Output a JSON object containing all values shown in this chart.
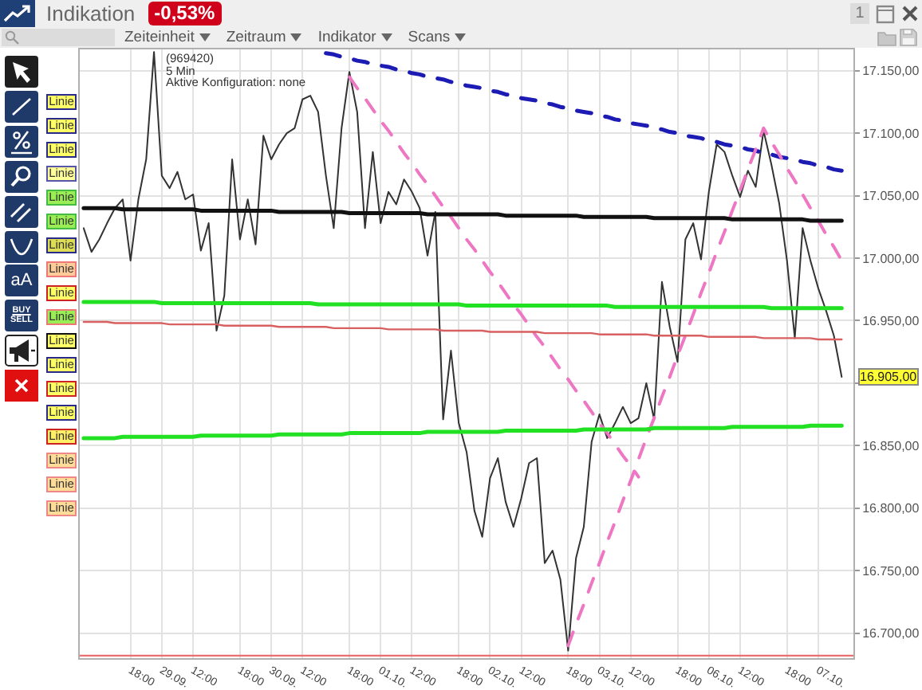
{
  "chart_data": {
    "type": "line",
    "title": "Indikation",
    "annotations": [
      "-0,53%",
      "1",
      "Zeiteinheit",
      "Zeitraum",
      "Indikator",
      "Scans",
      "(969420)",
      "5 Min",
      "Aktive Konfiguration: none",
      "aA",
      "BUY",
      "SELL",
      "Linie",
      "Linie",
      "Linie",
      "Linie",
      "Linie",
      "Linie",
      "Linie",
      "Linie",
      "Linie",
      "Linie",
      "Linie",
      "Linie",
      "Linie",
      "Linie",
      "Linie",
      "Linie",
      "Linie",
      "Linie",
      "16.905,00"
    ],
    "categories": [
      null,
      null,
      null,
      null,
      null,
      null,
      "18:00",
      null,
      null,
      null,
      "29.09.",
      null,
      null,
      null,
      "12:00",
      null,
      null,
      null,
      null,
      null,
      "18:00",
      null,
      null,
      null,
      "30.09.",
      null,
      null,
      null,
      "12:00",
      null,
      null,
      null,
      null,
      null,
      "18:00",
      null,
      null,
      null,
      "01.10.",
      null,
      null,
      null,
      "12:00",
      null,
      null,
      null,
      null,
      null,
      "18:00",
      null,
      null,
      null,
      "02.10.",
      null,
      null,
      null,
      "12:00",
      null,
      null,
      null,
      null,
      null,
      "18:00",
      null,
      null,
      null,
      "03.10.",
      null,
      null,
      null,
      "12:00",
      null,
      null,
      null,
      null,
      null,
      "18:00",
      null,
      null,
      null,
      "06.10.",
      null,
      null,
      null,
      "12:00",
      null,
      null,
      null,
      null,
      null,
      "18:00",
      null,
      null,
      null,
      "07.10.",
      null,
      null,
      null,
      null
    ],
    "series": [
      {
        "color": "#333333",
        "values": [
          17024,
          17005,
          17015,
          17028,
          17040,
          17047,
          16998,
          17047,
          17079,
          17165,
          17066,
          17056,
          17069,
          17047,
          17051,
          17006,
          17028,
          16942,
          16970,
          17079,
          17015,
          17047,
          17011,
          17098,
          17079,
          17091,
          17100,
          17104,
          17127,
          17130,
          17117,
          17066,
          17024,
          17104,
          17149,
          17117,
          17024,
          17085,
          17028,
          17053,
          17043,
          17063,
          17053,
          17040,
          17002,
          17037,
          16871,
          16926,
          16868,
          16845,
          16798,
          16777,
          16824,
          16840,
          16805,
          16785,
          16808,
          16836,
          16840,
          16756,
          16766,
          16743,
          16686,
          16760,
          16785,
          16853,
          16875,
          16856,
          16868,
          16881,
          16868,
          16872,
          16900,
          16871,
          16981,
          16945,
          16917,
          17015,
          17028,
          16999,
          17053,
          17091,
          17085,
          17066,
          17049,
          17070,
          17057,
          17102,
          17075,
          17044,
          16998,
          16936,
          17024,
          16998,
          16976,
          16958,
          16938,
          16905,
          null
        ]
      },
      {
        "color": "#1c1cb4",
        "line_style": "dashed",
        "values": [
          null,
          null,
          null,
          null,
          null,
          null,
          null,
          null,
          null,
          null,
          null,
          null,
          null,
          null,
          null,
          null,
          null,
          null,
          null,
          null,
          null,
          null,
          null,
          null,
          null,
          null,
          null,
          null,
          null,
          null,
          null,
          17164,
          17163,
          17161,
          17160,
          17158,
          17157,
          17155,
          17154,
          17153,
          17151,
          17150,
          17148,
          17147,
          17145,
          17144,
          17143,
          17141,
          17140,
          17138,
          17137,
          17136,
          17134,
          17133,
          17131,
          17130,
          17128,
          17127,
          17126,
          17124,
          17123,
          17121,
          17120,
          17118,
          17117,
          17116,
          17114,
          17113,
          17111,
          17110,
          17108,
          17107,
          17106,
          17104,
          17103,
          17101,
          17100,
          17098,
          17097,
          17096,
          17094,
          17093,
          17091,
          17090,
          17089,
          17087,
          17086,
          17084,
          17083,
          17081,
          17080,
          17079,
          17077,
          17076,
          17074,
          17073,
          17071,
          17070,
          null
        ]
      },
      {
        "color": "#ee77c4",
        "line_style": "dashed",
        "values": [
          null,
          null,
          null,
          null,
          null,
          null,
          null,
          null,
          null,
          null,
          null,
          null,
          null,
          null,
          null,
          null,
          null,
          null,
          null,
          null,
          null,
          null,
          null,
          null,
          null,
          null,
          null,
          null,
          null,
          null,
          null,
          null,
          null,
          null,
          17145,
          17136,
          17128,
          17119,
          17110,
          17102,
          17093,
          17084,
          17076,
          17067,
          17059,
          17050,
          17041,
          17033,
          17024,
          17015,
          17007,
          16998,
          16989,
          16981,
          16972,
          16963,
          16955,
          16946,
          16937,
          16929,
          16920,
          16911,
          16903,
          16894,
          16886,
          16877,
          16868,
          16860,
          16851,
          16842,
          16834,
          16825,
          null,
          null,
          null,
          null,
          null,
          null,
          null,
          null,
          null,
          null,
          null,
          null,
          null,
          null,
          null,
          null,
          null,
          null,
          null,
          null,
          null,
          null,
          null,
          null,
          null,
          null,
          null
        ]
      },
      {
        "color": "#ee77c4",
        "line_style": "dashed",
        "values": [
          null,
          null,
          null,
          null,
          null,
          null,
          null,
          null,
          null,
          null,
          null,
          null,
          null,
          null,
          null,
          null,
          null,
          null,
          null,
          null,
          null,
          null,
          null,
          null,
          null,
          null,
          null,
          null,
          null,
          null,
          null,
          null,
          null,
          null,
          null,
          null,
          null,
          null,
          null,
          null,
          null,
          null,
          null,
          null,
          null,
          null,
          null,
          null,
          null,
          null,
          null,
          null,
          null,
          null,
          null,
          null,
          null,
          null,
          null,
          null,
          null,
          null,
          16690,
          16707,
          16723,
          16740,
          16756,
          16773,
          16789,
          16806,
          16822,
          16839,
          16856,
          16872,
          16889,
          16905,
          16922,
          16938,
          16955,
          16972,
          16988,
          17005,
          17021,
          17038,
          17054,
          17071,
          17087,
          17104,
          17093,
          17083,
          17072,
          17062,
          17051,
          17040,
          17030,
          17019,
          17009,
          16998,
          null
        ]
      },
      {
        "color": "#111111",
        "values": [
          17040,
          17040,
          17040,
          17040,
          17040,
          17039,
          17039,
          17039,
          17039,
          17039,
          17039,
          17039,
          17039,
          17039,
          17039,
          17038,
          17038,
          17038,
          17038,
          17038,
          17038,
          17038,
          17038,
          17038,
          17038,
          17037,
          17037,
          17037,
          17037,
          17037,
          17037,
          17037,
          17037,
          17037,
          17036,
          17036,
          17036,
          17036,
          17036,
          17036,
          17036,
          17036,
          17036,
          17036,
          17035,
          17035,
          17035,
          17035,
          17035,
          17035,
          17035,
          17035,
          17035,
          17035,
          17034,
          17034,
          17034,
          17034,
          17034,
          17034,
          17034,
          17034,
          17034,
          17034,
          17033,
          17033,
          17033,
          17033,
          17033,
          17033,
          17033,
          17033,
          17033,
          17032,
          17032,
          17032,
          17032,
          17032,
          17032,
          17032,
          17032,
          17032,
          17032,
          17031,
          17031,
          17031,
          17031,
          17031,
          17031,
          17031,
          17031,
          17031,
          17031,
          17030,
          17030,
          17030,
          17030,
          17030,
          null
        ]
      },
      {
        "color": "#22e022",
        "values": [
          16965,
          16965,
          16965,
          16965,
          16965,
          16965,
          16965,
          16965,
          16965,
          16965,
          16964,
          16964,
          16964,
          16964,
          16964,
          16964,
          16964,
          16964,
          16964,
          16964,
          16964,
          16964,
          16964,
          16964,
          16964,
          16964,
          16964,
          16964,
          16964,
          16964,
          16963,
          16963,
          16963,
          16963,
          16963,
          16963,
          16963,
          16963,
          16963,
          16963,
          16963,
          16963,
          16963,
          16963,
          16963,
          16963,
          16963,
          16963,
          16963,
          16962,
          16962,
          16962,
          16962,
          16962,
          16962,
          16962,
          16962,
          16962,
          16962,
          16962,
          16962,
          16962,
          16962,
          16962,
          16962,
          16962,
          16962,
          16962,
          16961,
          16961,
          16961,
          16961,
          16961,
          16961,
          16961,
          16961,
          16961,
          16961,
          16961,
          16961,
          16961,
          16961,
          16961,
          16961,
          16961,
          16961,
          16961,
          16961,
          16960,
          16960,
          16960,
          16960,
          16960,
          16960,
          16960,
          16960,
          16960,
          16960,
          null
        ]
      },
      {
        "color": "#22e022",
        "values": [
          16856,
          16856,
          16856,
          16856,
          16856,
          16857,
          16857,
          16857,
          16857,
          16857,
          16857,
          16857,
          16857,
          16857,
          16857,
          16858,
          16858,
          16858,
          16858,
          16858,
          16858,
          16858,
          16858,
          16858,
          16858,
          16859,
          16859,
          16859,
          16859,
          16859,
          16859,
          16859,
          16859,
          16859,
          16860,
          16860,
          16860,
          16860,
          16860,
          16860,
          16860,
          16860,
          16860,
          16860,
          16861,
          16861,
          16861,
          16861,
          16861,
          16861,
          16861,
          16861,
          16861,
          16861,
          16862,
          16862,
          16862,
          16862,
          16862,
          16862,
          16862,
          16862,
          16862,
          16862,
          16863,
          16863,
          16863,
          16863,
          16863,
          16863,
          16863,
          16863,
          16863,
          16864,
          16864,
          16864,
          16864,
          16864,
          16864,
          16864,
          16864,
          16864,
          16864,
          16865,
          16865,
          16865,
          16865,
          16865,
          16865,
          16865,
          16865,
          16865,
          16865,
          16866,
          16866,
          16866,
          16866,
          16866,
          null
        ]
      },
      {
        "color": "#d96060",
        "values": [
          16949,
          16949,
          16949,
          16949,
          16948,
          16948,
          16948,
          16948,
          16948,
          16948,
          16948,
          16947,
          16947,
          16947,
          16947,
          16947,
          16947,
          16947,
          16946,
          16946,
          16946,
          16946,
          16946,
          16946,
          16946,
          16945,
          16945,
          16945,
          16945,
          16945,
          16945,
          16945,
          16944,
          16944,
          16944,
          16944,
          16944,
          16944,
          16944,
          16943,
          16943,
          16943,
          16943,
          16943,
          16943,
          16943,
          16942,
          16942,
          16942,
          16942,
          16942,
          16942,
          16941,
          16941,
          16941,
          16941,
          16941,
          16941,
          16941,
          16940,
          16940,
          16940,
          16940,
          16940,
          16940,
          16940,
          16939,
          16939,
          16939,
          16939,
          16939,
          16939,
          16939,
          16938,
          16938,
          16938,
          16938,
          16938,
          16938,
          16938,
          16937,
          16937,
          16937,
          16937,
          16937,
          16937,
          16937,
          16936,
          16936,
          16936,
          16936,
          16936,
          16936,
          16936,
          16935,
          16935,
          16935,
          16935,
          null
        ]
      }
    ],
    "ref_lines": [
      {
        "axis": "y",
        "value": 16682,
        "color": "#e87070"
      }
    ],
    "line_style": "solid",
    "grid": true,
    "ylim": [
      16680,
      17167
    ],
    "yticks": [
      {
        "value": 16700,
        "label": "16.700,00"
      },
      {
        "value": 16750,
        "label": "16.750,00"
      },
      {
        "value": 16800,
        "label": "16.800,00"
      },
      {
        "value": 16850,
        "label": "16.850,00"
      },
      {
        "value": 16900,
        "label": null
      },
      {
        "value": 16950,
        "label": "16.950,00"
      },
      {
        "value": 17000,
        "label": "17.000,00"
      },
      {
        "value": 17050,
        "label": "17.050,00"
      },
      {
        "value": 17100,
        "label": "17.100,00"
      },
      {
        "value": 17150,
        "label": "17.150,00"
      }
    ]
  }
}
